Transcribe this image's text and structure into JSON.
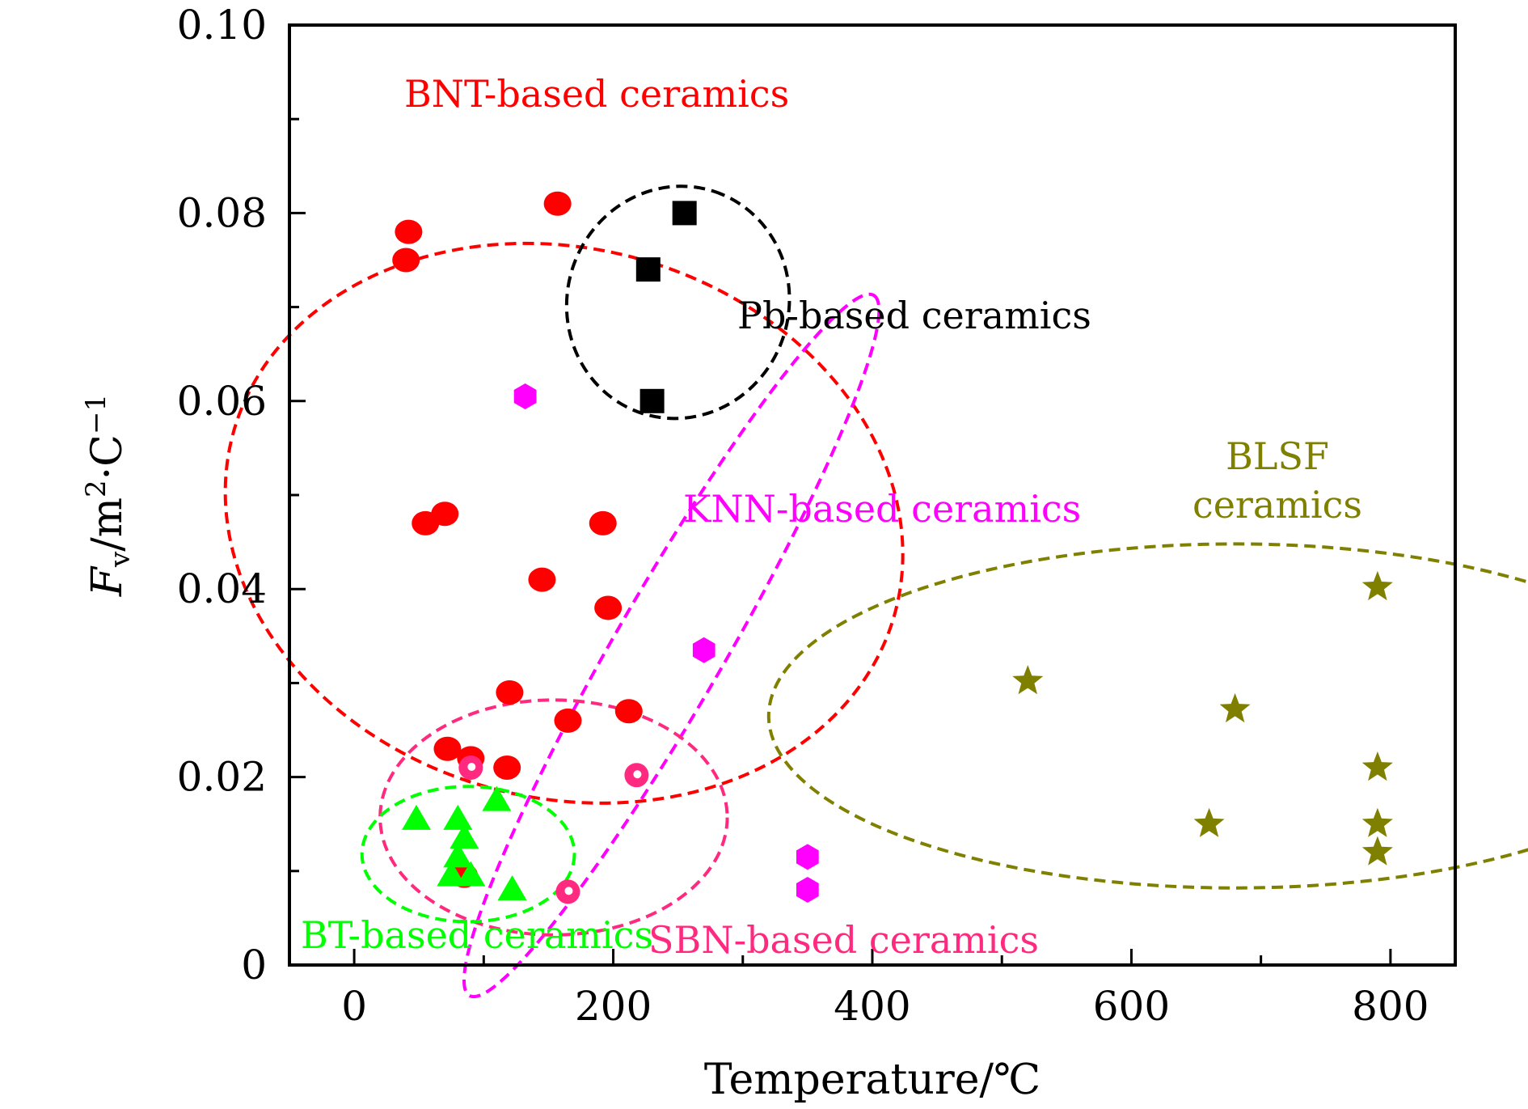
{
  "chart_data": {
    "type": "scatter",
    "title": "",
    "xlabel": "Temperature/℃",
    "ylabel": {
      "main": "F",
      "sub": "v",
      "rest": "/m",
      "sup1": "2",
      "mid": "·C",
      "sup2": "−1"
    },
    "xlim": [
      -50,
      850
    ],
    "ylim": [
      0,
      0.1
    ],
    "x_ticks": [
      0,
      200,
      400,
      600,
      800
    ],
    "x_tick_labels": [
      "0",
      "200",
      "400",
      "600",
      "800"
    ],
    "y_ticks": [
      0,
      0.02,
      0.04,
      0.06,
      0.08,
      0.1
    ],
    "y_tick_labels": [
      "0",
      "0.02",
      "0.04",
      "0.06",
      "0.08",
      "0.10"
    ],
    "grid": false,
    "series": [
      {
        "label": "BNT-based ceramics",
        "marker": "circle",
        "color": "#ff0000",
        "points": [
          [
            42,
            0.078
          ],
          [
            40,
            0.075
          ],
          [
            157,
            0.081
          ],
          [
            55,
            0.047
          ],
          [
            70,
            0.048
          ],
          [
            192,
            0.047
          ],
          [
            145,
            0.041
          ],
          [
            196,
            0.038
          ],
          [
            120,
            0.029
          ],
          [
            165,
            0.026
          ],
          [
            212,
            0.027
          ],
          [
            72,
            0.023
          ],
          [
            90,
            0.022
          ],
          [
            118,
            0.021
          ],
          [
            85,
            0.0095
          ]
        ],
        "ellipse": {
          "cx": 162,
          "cy": 0.047,
          "rx": 212,
          "ry": 0.0365,
          "angle": -75
        }
      },
      {
        "label": "Pb-based ceramics",
        "marker": "square",
        "color": "#000000",
        "points": [
          [
            255,
            0.08
          ],
          [
            227,
            0.074
          ],
          [
            230,
            0.06
          ]
        ],
        "ellipse": {
          "cx": 250,
          "cy": 0.0705,
          "rx": 90,
          "ry": 0.0118,
          "angle": -72
        }
      },
      {
        "label": "KNN-based ceramics",
        "marker": "hexagon",
        "color": "#ff00ff",
        "points": [
          [
            132,
            0.0605
          ],
          [
            270,
            0.0335
          ],
          [
            350,
            0.0115
          ],
          [
            350,
            0.008
          ]
        ],
        "ellipse": {
          "cx": 245,
          "cy": 0.034,
          "rx": 312,
          "ry": 0.0058,
          "angle": -60
        }
      },
      {
        "label": "SBN-based ceramics",
        "marker": "sphere",
        "color": "#ff2a7f",
        "points": [
          [
            90,
            0.021
          ],
          [
            218,
            0.0202
          ],
          [
            165,
            0.0078
          ]
        ],
        "ellipse": {
          "cx": 154,
          "cy": 0.0157,
          "rx": 134,
          "ry": 0.0125,
          "angle": 0
        }
      },
      {
        "label": "BT-based ceramics",
        "marker": "triangle",
        "color": "#00ff00",
        "points": [
          [
            48,
            0.0155
          ],
          [
            80,
            0.0155
          ],
          [
            110,
            0.0175
          ],
          [
            85,
            0.0135
          ],
          [
            80,
            0.0115
          ],
          [
            75,
            0.0095
          ],
          [
            90,
            0.0095
          ],
          [
            122,
            0.008
          ]
        ],
        "ellipse": {
          "cx": 88,
          "cy": 0.0118,
          "rx": 82,
          "ry": 0.0072,
          "angle": 0
        }
      },
      {
        "label": "BLSF ceramics",
        "marker": "star",
        "color": "#808000",
        "points": [
          [
            520,
            0.0302
          ],
          [
            790,
            0.0402
          ],
          [
            680,
            0.0272
          ],
          [
            790,
            0.021
          ],
          [
            660,
            0.015
          ],
          [
            790,
            0.015
          ],
          [
            790,
            0.012
          ]
        ],
        "ellipse": {
          "cx": 680,
          "cy": 0.0265,
          "rx": 360,
          "ry": 0.0183,
          "angle": 0
        }
      }
    ],
    "annotations": [
      {
        "text": "BNT-based ceramics",
        "color": "#ff0000"
      },
      {
        "text": "Pb-based ceramics",
        "color": "#000000"
      },
      {
        "text": "KNN-based ceramics",
        "color": "#ff00ff"
      },
      {
        "text": "BLSF",
        "color": "#808000"
      },
      {
        "text": "ceramics",
        "color": "#808000"
      },
      {
        "text": "BT-based ceramics",
        "color": "#00ff00"
      },
      {
        "text": "SBN-based ceramics",
        "color": "#ff2a7f"
      }
    ]
  }
}
